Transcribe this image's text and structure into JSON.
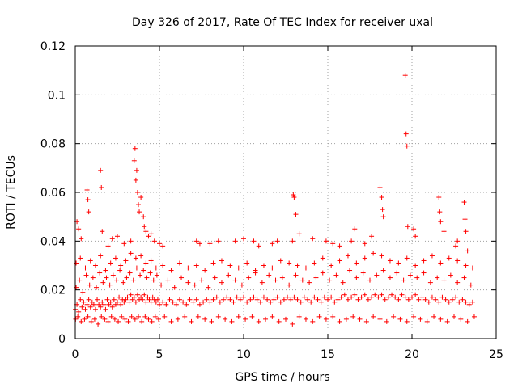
{
  "chart_data": {
    "type": "scatter",
    "title": "Day 326 of 2017, Rate Of TEC Index for receiver uxal",
    "xlabel": "GPS time / hours",
    "ylabel": "ROTI / TECUs",
    "xlim": [
      0,
      25
    ],
    "ylim": [
      0,
      0.12
    ],
    "x_ticks": [
      0,
      5,
      10,
      15,
      20,
      25
    ],
    "y_ticks": [
      0,
      0.02,
      0.04,
      0.06,
      0.08,
      0.1,
      0.12
    ],
    "x_tick_labels": [
      "0",
      "5",
      "10",
      "15",
      "20",
      "25"
    ],
    "y_tick_labels": [
      "0",
      "0.02",
      "0.04",
      "0.06",
      "0.08",
      "0.1",
      "0.12"
    ],
    "grid": true,
    "marker": "+",
    "series_color": "#ff0000",
    "series": [
      {
        "name": "ROTI",
        "x": [
          0.0,
          0.1,
          0.2,
          0.3,
          0.4,
          0.5,
          0.6,
          0.7,
          0.8,
          0.9,
          1.0,
          1.1,
          1.2,
          1.3,
          1.4,
          1.5,
          1.6,
          1.7,
          1.8,
          1.9,
          2.0,
          2.1,
          2.2,
          2.3,
          2.4,
          2.5,
          2.6,
          2.7,
          2.8,
          2.9,
          3.0,
          3.1,
          3.2,
          3.3,
          3.4,
          3.5,
          3.6,
          3.7,
          3.8,
          3.9,
          4.0,
          4.1,
          4.2,
          4.3,
          4.4,
          4.5,
          4.6,
          4.7,
          4.8,
          4.9,
          5.0,
          5.2,
          5.4,
          5.6,
          5.8,
          6.0,
          6.2,
          6.4,
          6.6,
          6.8,
          7.0,
          7.2,
          7.4,
          7.6,
          7.8,
          8.0,
          8.2,
          8.4,
          8.6,
          8.8,
          9.0,
          9.2,
          9.4,
          9.6,
          9.8,
          10.0,
          10.2,
          10.4,
          10.6,
          10.8,
          11.0,
          11.2,
          11.4,
          11.6,
          11.8,
          12.0,
          12.2,
          12.4,
          12.6,
          12.8,
          13.0,
          13.2,
          13.4,
          13.6,
          13.8,
          14.0,
          14.2,
          14.4,
          14.6,
          14.8,
          15.0,
          15.2,
          15.4,
          15.6,
          15.8,
          16.0,
          16.2,
          16.4,
          16.6,
          16.8,
          17.0,
          17.2,
          17.4,
          17.6,
          17.8,
          18.0,
          18.2,
          18.4,
          18.6,
          18.8,
          19.0,
          19.2,
          19.4,
          19.6,
          19.8,
          20.0,
          20.2,
          20.4,
          20.6,
          20.8,
          21.0,
          21.2,
          21.4,
          21.6,
          21.8,
          22.0,
          22.2,
          22.4,
          22.6,
          22.8,
          23.0,
          23.2,
          23.4,
          23.6,
          0.05,
          0.25,
          0.45,
          0.65,
          0.85,
          1.05,
          1.25,
          1.45,
          1.65,
          1.85,
          2.05,
          2.25,
          2.45,
          2.65,
          2.85,
          3.05,
          3.25,
          3.45,
          3.65,
          3.85,
          4.05,
          4.25,
          4.45,
          4.65,
          4.85,
          5.1,
          5.5,
          5.9,
          6.3,
          6.7,
          7.1,
          7.5,
          7.9,
          8.3,
          8.7,
          9.1,
          9.5,
          9.9,
          10.3,
          10.7,
          11.1,
          11.5,
          11.9,
          12.3,
          12.7,
          13.1,
          13.5,
          13.9,
          14.3,
          14.7,
          15.1,
          15.5,
          15.9,
          16.3,
          16.7,
          17.1,
          17.5,
          17.9,
          18.3,
          18.7,
          19.1,
          19.5,
          19.9,
          20.3,
          20.7,
          21.1,
          21.5,
          21.9,
          22.3,
          22.7,
          23.1,
          23.5,
          0.02,
          0.15,
          0.35,
          0.55,
          0.75,
          0.95,
          1.15,
          1.35,
          1.55,
          1.75,
          1.95,
          2.15,
          2.35,
          2.55,
          2.75,
          2.95,
          3.15,
          3.35,
          3.55,
          3.75,
          3.95,
          4.15,
          4.35,
          4.55,
          4.75,
          4.95,
          5.3,
          5.7,
          6.1,
          6.5,
          6.9,
          7.3,
          7.7,
          8.1,
          8.5,
          8.9,
          9.3,
          9.7,
          10.1,
          10.5,
          10.9,
          11.3,
          11.7,
          12.1,
          12.5,
          12.9,
          13.3,
          13.7,
          14.1,
          14.5,
          14.9,
          15.3,
          15.7,
          16.1,
          16.5,
          16.9,
          17.3,
          17.7,
          18.1,
          18.5,
          18.9,
          19.3,
          19.7,
          20.1,
          20.5,
          20.9,
          21.3,
          21.7,
          22.1,
          22.5,
          22.9,
          23.3,
          23.7,
          0.05,
          0.3,
          0.6,
          0.9,
          1.2,
          1.5,
          1.8,
          2.1,
          2.4,
          2.7,
          3.0,
          3.3,
          3.6,
          3.9,
          4.2,
          4.5,
          4.8,
          5.2,
          5.7,
          6.2,
          6.7,
          7.2,
          7.7,
          8.2,
          8.7,
          9.2,
          9.7,
          10.2,
          10.7,
          11.2,
          11.7,
          12.2,
          12.7,
          13.2,
          13.7,
          14.2,
          14.7,
          15.2,
          15.7,
          16.2,
          16.7,
          17.2,
          17.7,
          18.2,
          18.7,
          19.2,
          19.7,
          20.2,
          20.7,
          21.2,
          21.7,
          22.2,
          22.7,
          23.2,
          23.6,
          0.1,
          0.2,
          0.35,
          0.7,
          0.75,
          0.8,
          1.5,
          1.55,
          1.6,
          1.95,
          2.2,
          2.5,
          2.9,
          3.3,
          3.5,
          3.55,
          3.6,
          3.65,
          3.7,
          3.75,
          3.8,
          3.9,
          4.05,
          4.1,
          4.2,
          4.35,
          4.5,
          4.7,
          5.0,
          5.2,
          7.2,
          7.4,
          8.0,
          8.5,
          9.5,
          10.0,
          10.6,
          10.9,
          11.7,
          12.0,
          12.9,
          12.95,
          13.0,
          13.1,
          13.3,
          14.1,
          14.9,
          15.3,
          15.7,
          16.4,
          16.6,
          17.2,
          17.6,
          18.1,
          18.2,
          18.25,
          18.3,
          19.6,
          19.65,
          19.7,
          19.75,
          20.1,
          20.2,
          21.6,
          21.65,
          21.7,
          21.9,
          22.6,
          22.7,
          23.1,
          23.15,
          23.2,
          23.3
        ],
        "y": [
          0.012,
          0.014,
          0.011,
          0.016,
          0.013,
          0.015,
          0.012,
          0.014,
          0.016,
          0.013,
          0.015,
          0.014,
          0.012,
          0.016,
          0.014,
          0.013,
          0.015,
          0.014,
          0.012,
          0.016,
          0.014,
          0.015,
          0.013,
          0.016,
          0.014,
          0.015,
          0.017,
          0.014,
          0.016,
          0.015,
          0.016,
          0.017,
          0.015,
          0.018,
          0.016,
          0.017,
          0.015,
          0.018,
          0.016,
          0.017,
          0.016,
          0.018,
          0.015,
          0.017,
          0.016,
          0.015,
          0.017,
          0.016,
          0.015,
          0.016,
          0.014,
          0.015,
          0.014,
          0.016,
          0.015,
          0.014,
          0.016,
          0.015,
          0.014,
          0.016,
          0.015,
          0.016,
          0.014,
          0.015,
          0.016,
          0.015,
          0.016,
          0.017,
          0.015,
          0.016,
          0.017,
          0.016,
          0.015,
          0.017,
          0.016,
          0.017,
          0.015,
          0.016,
          0.017,
          0.016,
          0.015,
          0.017,
          0.016,
          0.015,
          0.016,
          0.017,
          0.015,
          0.016,
          0.017,
          0.016,
          0.017,
          0.016,
          0.015,
          0.017,
          0.016,
          0.015,
          0.017,
          0.016,
          0.015,
          0.017,
          0.016,
          0.017,
          0.015,
          0.016,
          0.017,
          0.018,
          0.016,
          0.017,
          0.018,
          0.016,
          0.017,
          0.018,
          0.016,
          0.017,
          0.018,
          0.017,
          0.018,
          0.016,
          0.017,
          0.018,
          0.017,
          0.016,
          0.018,
          0.017,
          0.016,
          0.017,
          0.018,
          0.016,
          0.017,
          0.016,
          0.015,
          0.017,
          0.016,
          0.015,
          0.017,
          0.016,
          0.015,
          0.016,
          0.017,
          0.015,
          0.016,
          0.015,
          0.014,
          0.015,
          0.021,
          0.024,
          0.019,
          0.026,
          0.022,
          0.025,
          0.021,
          0.027,
          0.023,
          0.025,
          0.022,
          0.026,
          0.024,
          0.028,
          0.023,
          0.025,
          0.027,
          0.024,
          0.029,
          0.026,
          0.028,
          0.025,
          0.027,
          0.024,
          0.026,
          0.022,
          0.024,
          0.021,
          0.025,
          0.023,
          0.022,
          0.024,
          0.021,
          0.025,
          0.023,
          0.026,
          0.024,
          0.022,
          0.025,
          0.027,
          0.023,
          0.026,
          0.024,
          0.025,
          0.022,
          0.026,
          0.024,
          0.023,
          0.025,
          0.027,
          0.024,
          0.026,
          0.023,
          0.028,
          0.025,
          0.027,
          0.024,
          0.026,
          0.028,
          0.025,
          0.027,
          0.024,
          0.026,
          0.025,
          0.027,
          0.023,
          0.025,
          0.024,
          0.026,
          0.023,
          0.025,
          0.022,
          0.008,
          0.009,
          0.007,
          0.008,
          0.009,
          0.007,
          0.008,
          0.006,
          0.009,
          0.008,
          0.007,
          0.009,
          0.008,
          0.007,
          0.009,
          0.008,
          0.007,
          0.009,
          0.008,
          0.009,
          0.007,
          0.009,
          0.008,
          0.007,
          0.009,
          0.008,
          0.009,
          0.007,
          0.008,
          0.009,
          0.007,
          0.009,
          0.008,
          0.007,
          0.009,
          0.008,
          0.007,
          0.009,
          0.008,
          0.009,
          0.007,
          0.008,
          0.009,
          0.007,
          0.008,
          0.006,
          0.009,
          0.008,
          0.007,
          0.009,
          0.008,
          0.009,
          0.007,
          0.008,
          0.009,
          0.008,
          0.007,
          0.009,
          0.008,
          0.007,
          0.009,
          0.008,
          0.007,
          0.009,
          0.008,
          0.007,
          0.009,
          0.008,
          0.007,
          0.009,
          0.008,
          0.007,
          0.009,
          0.031,
          0.033,
          0.029,
          0.032,
          0.03,
          0.034,
          0.028,
          0.031,
          0.033,
          0.03,
          0.032,
          0.035,
          0.033,
          0.034,
          0.031,
          0.032,
          0.029,
          0.03,
          0.028,
          0.031,
          0.029,
          0.03,
          0.028,
          0.031,
          0.032,
          0.03,
          0.029,
          0.031,
          0.028,
          0.03,
          0.029,
          0.032,
          0.031,
          0.03,
          0.029,
          0.031,
          0.033,
          0.03,
          0.032,
          0.034,
          0.031,
          0.033,
          0.035,
          0.034,
          0.032,
          0.031,
          0.033,
          0.03,
          0.032,
          0.034,
          0.031,
          0.033,
          0.032,
          0.03,
          0.029,
          0.048,
          0.045,
          0.041,
          0.061,
          0.057,
          0.052,
          0.069,
          0.062,
          0.044,
          0.038,
          0.041,
          0.042,
          0.039,
          0.04,
          0.073,
          0.078,
          0.065,
          0.069,
          0.06,
          0.055,
          0.052,
          0.058,
          0.05,
          0.046,
          0.044,
          0.042,
          0.043,
          0.04,
          0.039,
          0.038,
          0.04,
          0.039,
          0.039,
          0.04,
          0.04,
          0.041,
          0.04,
          0.038,
          0.039,
          0.04,
          0.04,
          0.059,
          0.058,
          0.051,
          0.043,
          0.041,
          0.04,
          0.039,
          0.038,
          0.04,
          0.045,
          0.039,
          0.042,
          0.062,
          0.058,
          0.053,
          0.05,
          0.108,
          0.084,
          0.079,
          0.046,
          0.045,
          0.042,
          0.058,
          0.052,
          0.048,
          0.044,
          0.038,
          0.04,
          0.056,
          0.049,
          0.044,
          0.036
        ]
      }
    ]
  }
}
